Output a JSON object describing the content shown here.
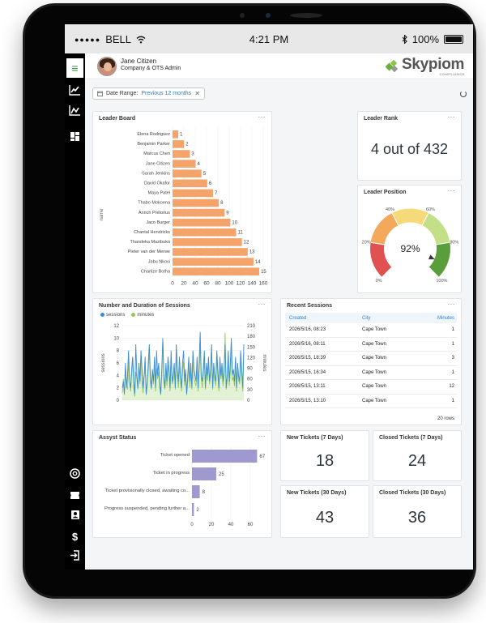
{
  "statusbar": {
    "carrier": "BELL",
    "time": "4:21 PM",
    "battery": "100%"
  },
  "user": {
    "name": "Jane Citizen",
    "role": "Company & OTS Admin"
  },
  "brand": {
    "name": "Skypiom",
    "sub": "COMPLIANCE"
  },
  "filter": {
    "label": "Date Range:",
    "value": "Previous 12 months"
  },
  "leaderboard": {
    "title": "Leader Board",
    "ylabel": "name",
    "chart_data": {
      "type": "bar",
      "orientation": "horizontal",
      "categories": [
        "Elena Rodriguez",
        "Benjamin Parker",
        "Marcus Chen",
        "Jane Citizen",
        "Sarah Jenkins",
        "David Okafor",
        "Maya Patel",
        "Thabo Mokoena",
        "Anrich Pretorius",
        "Jaco Burger",
        "Chantal Hendricks",
        "Thandeka Mazibuko",
        "Pieter van der Merwe",
        "Jabu Nkosi",
        "Charlize Botha"
      ],
      "values": [
        1,
        2,
        3,
        4,
        5,
        6,
        7,
        8,
        9,
        10,
        11,
        12,
        13,
        14,
        15
      ],
      "xlim": [
        0,
        160
      ],
      "xticks": [
        0,
        20,
        40,
        60,
        80,
        100,
        120,
        140,
        160
      ],
      "ylabel": "name",
      "color": "#f4a46a"
    }
  },
  "rank": {
    "title": "Leader Rank",
    "value": "4 out of 432"
  },
  "position": {
    "title": "Leader Position",
    "value": "92%",
    "labels": [
      "0%",
      "20%",
      "40%",
      "60%",
      "80%",
      "100%"
    ],
    "gauge_value": 92,
    "colors": [
      "#e05252",
      "#f3a85c",
      "#f5da7a",
      "#c3df87",
      "#5a9e3b"
    ]
  },
  "sessions": {
    "title": "Number and Duration of Sessions",
    "legend": [
      "sessions",
      "minutes"
    ],
    "left_label": "sessions",
    "right_label": "minutes",
    "chart_data": {
      "type": "line",
      "series": [
        {
          "name": "sessions",
          "axis": "left",
          "color": "#3b8ed6",
          "values": [
            2,
            3,
            1,
            6,
            2,
            4,
            8,
            3,
            2,
            5,
            7,
            3,
            1,
            9,
            4,
            2,
            6,
            3,
            8,
            5,
            2,
            4,
            7,
            1,
            3,
            6,
            9,
            4,
            2,
            5,
            3,
            7,
            2,
            8,
            4,
            6,
            3,
            1,
            5,
            10,
            4,
            2,
            6,
            3,
            7,
            5,
            2,
            8,
            3,
            4,
            6,
            2,
            9,
            5,
            3,
            7,
            4,
            2,
            6,
            8,
            3,
            5,
            1,
            4,
            7,
            3,
            6,
            2,
            8,
            5,
            4,
            3,
            7,
            2,
            6,
            11,
            4,
            3,
            5,
            8,
            2,
            6,
            4,
            7,
            3,
            5,
            9,
            2,
            6,
            4,
            3,
            8,
            5,
            2,
            7,
            4,
            6,
            3,
            5,
            9,
            2,
            4,
            8,
            3,
            6,
            10,
            4,
            5,
            3,
            7,
            2,
            6,
            4,
            3,
            8,
            5,
            2,
            9
          ]
        },
        {
          "name": "minutes",
          "axis": "right",
          "color": "#8fc95a",
          "values": [
            20,
            60,
            15,
            90,
            40,
            30,
            110,
            50,
            25,
            70,
            120,
            35,
            10,
            80,
            60,
            30,
            100,
            45,
            130,
            55,
            20,
            65,
            95,
            15,
            40,
            85,
            140,
            50,
            30,
            75,
            45,
            105,
            25,
            90,
            60,
            80,
            35,
            15,
            70,
            170,
            50,
            30,
            85,
            40,
            100,
            70,
            25,
            120,
            45,
            55,
            90,
            30,
            130,
            65,
            35,
            95,
            55,
            25,
            80,
            110,
            40,
            70,
            15,
            55,
            100,
            35,
            85,
            30,
            125,
            65,
            50,
            40,
            95,
            25,
            85,
            150,
            60,
            35,
            70,
            115,
            30,
            80,
            55,
            100,
            45,
            70,
            135,
            30,
            85,
            55,
            40,
            120,
            65,
            25,
            95,
            60,
            85,
            40,
            70,
            190,
            30,
            55,
            115,
            40,
            80,
            145,
            55,
            65,
            40,
            100,
            25,
            85,
            55,
            45,
            120,
            70,
            25,
            135
          ]
        }
      ],
      "ylim_left": [
        0,
        12
      ],
      "yticks_left": [
        0,
        2,
        4,
        6,
        8,
        10,
        12
      ],
      "ylim_right": [
        0,
        210
      ],
      "yticks_right": [
        0,
        30,
        60,
        90,
        120,
        150,
        180,
        210
      ]
    }
  },
  "recent": {
    "title": "Recent Sessions",
    "headers": [
      "Created",
      "City",
      "Minutes"
    ],
    "rows": [
      [
        "2026/5/16, 08:23",
        "Cape Town",
        "1"
      ],
      [
        "2026/5/16, 08:11",
        "Cape Town",
        "1"
      ],
      [
        "2026/5/15, 18:39",
        "Cape Town",
        "3"
      ],
      [
        "2026/5/15, 16:34",
        "Cape Town",
        "1"
      ],
      [
        "2026/5/15, 13:11",
        "Cape Town",
        "12"
      ],
      [
        "2026/5/15, 13:10",
        "Cape Town",
        "1"
      ]
    ],
    "footer": "20 rows"
  },
  "assyst": {
    "title": "Assyst Status",
    "chart_data": {
      "type": "bar",
      "orientation": "horizontal",
      "categories": [
        "Ticket opened",
        "Ticket in progress",
        "Ticket provisionally closed, awaiting co...",
        "Progress suspended, pending further a..."
      ],
      "values": [
        67,
        25,
        8,
        2
      ],
      "xlim": [
        0,
        70
      ],
      "xticks": [
        0,
        20,
        40,
        60
      ],
      "color": "#9e9ad0"
    }
  },
  "kpis": [
    {
      "title": "New Tickets (7 Days)",
      "value": "18"
    },
    {
      "title": "Closed Tickets (7 Days)",
      "value": "24"
    },
    {
      "title": "New Tickets (30 Days)",
      "value": "43"
    },
    {
      "title": "Closed Tickets (30 Days)",
      "value": "36"
    }
  ],
  "icons": {
    "menu": "hamburger-icon",
    "nav": [
      "chart-up-icon",
      "chart-line-icon",
      "dashboard-icon",
      "support-icon",
      "ticket-icon",
      "contact-icon",
      "dollar-icon",
      "logout-icon"
    ]
  }
}
